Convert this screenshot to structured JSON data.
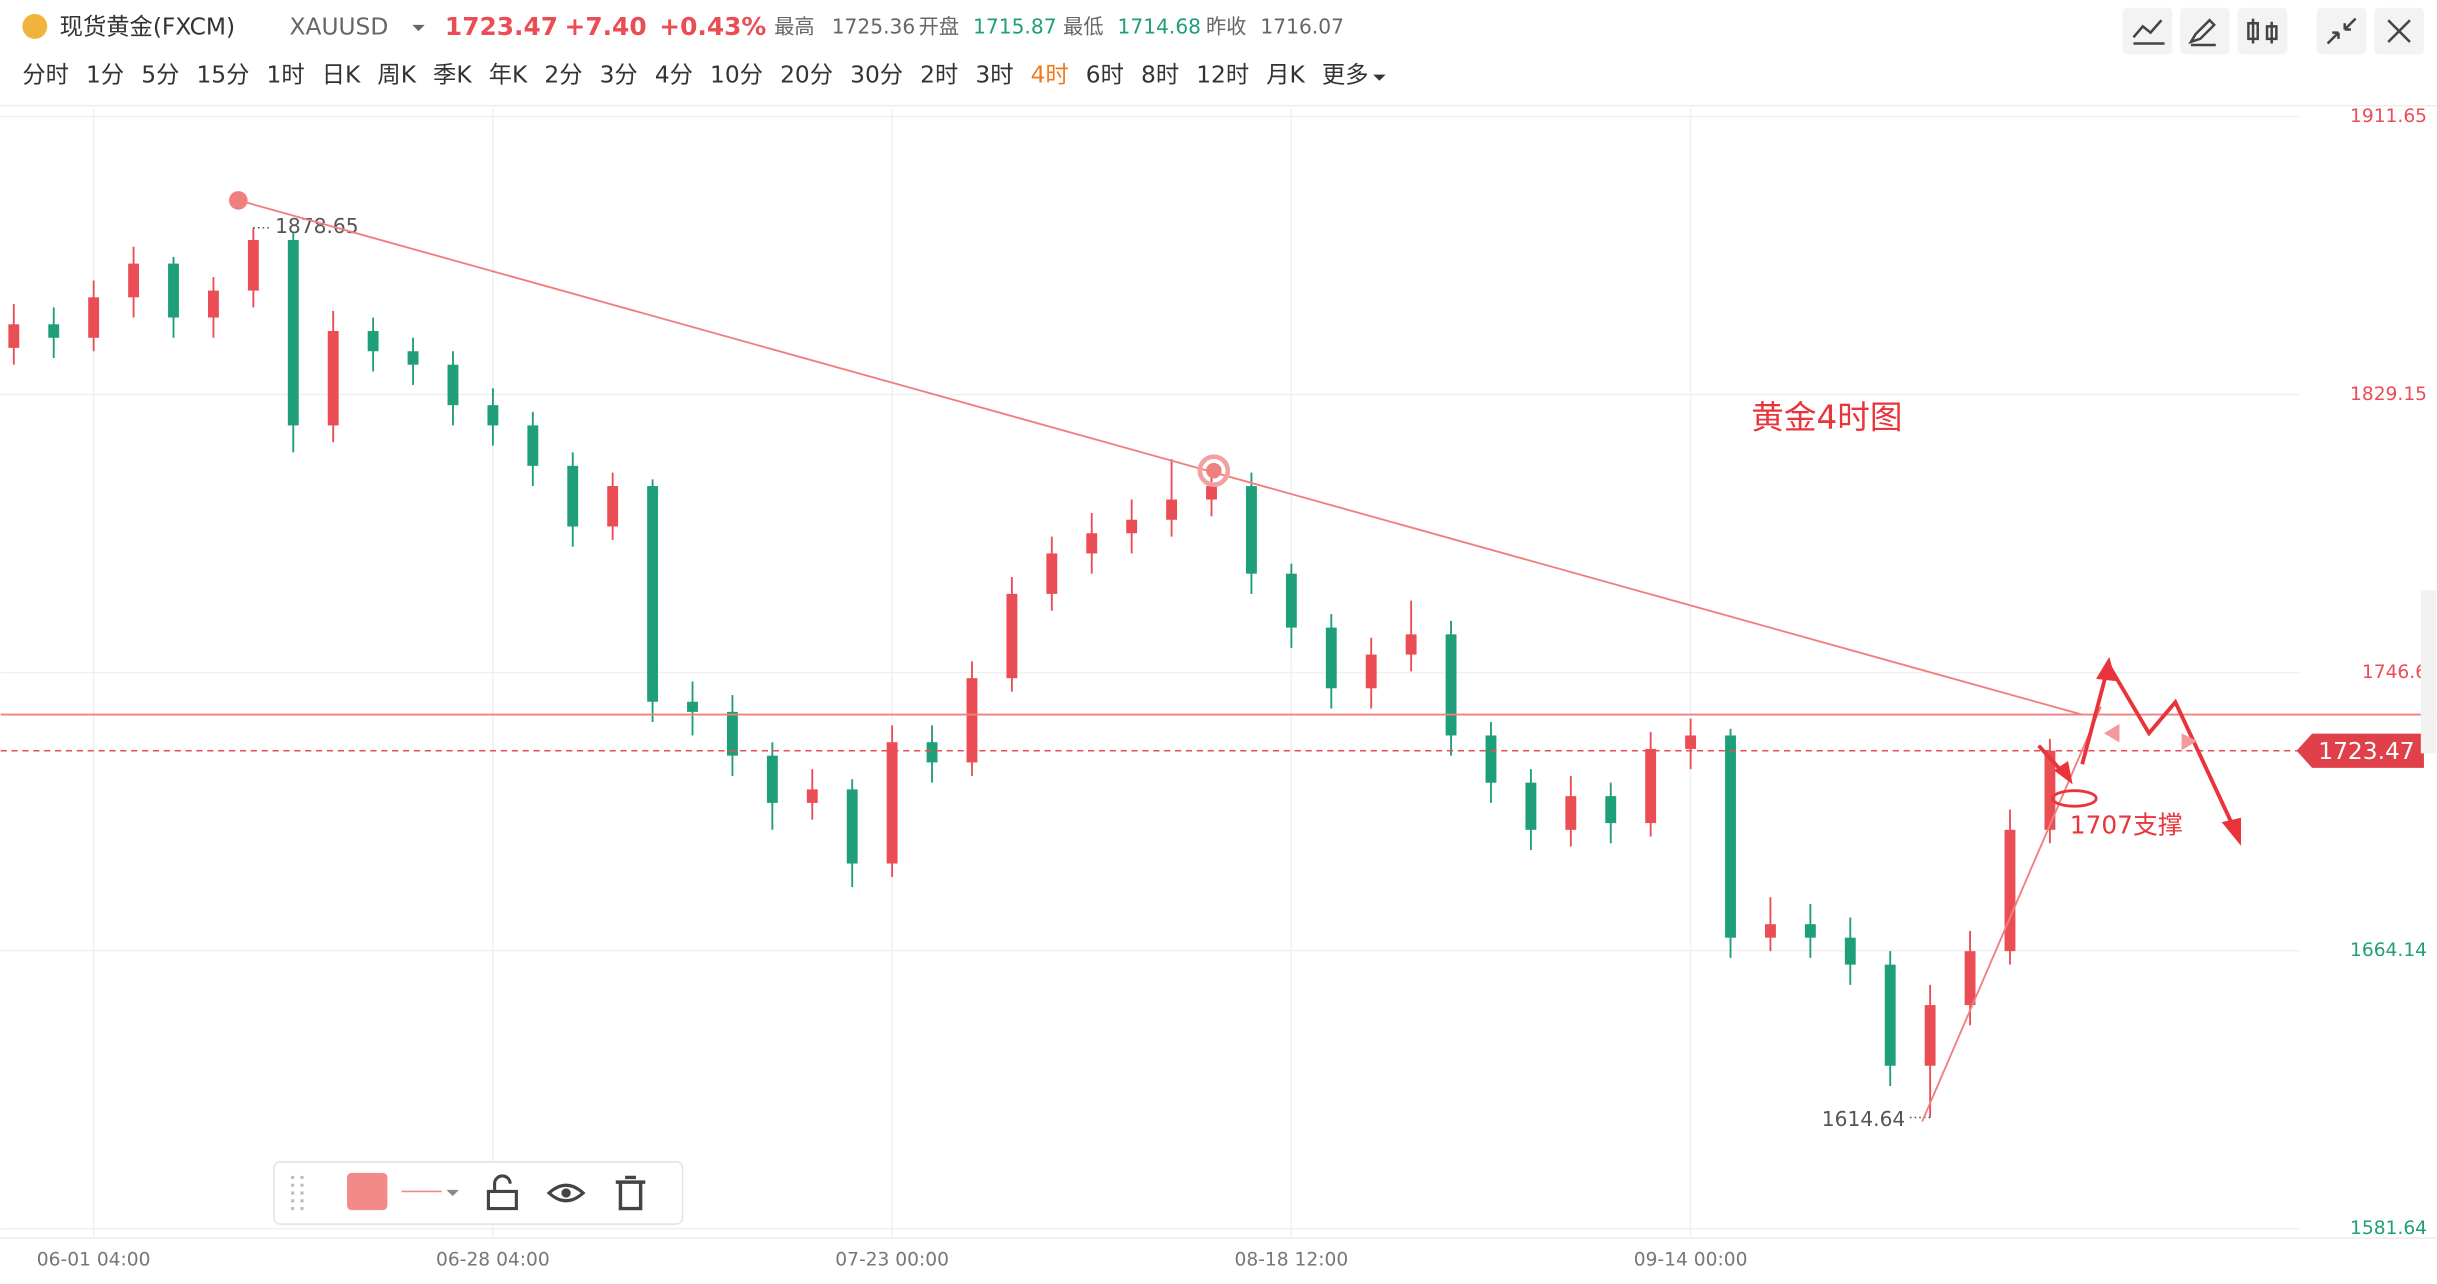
{
  "header": {
    "name": "现货黄金(FXCM)",
    "symbol": "XAUUSD",
    "price": "1723.47",
    "change": "+7.40",
    "change_pct": "+0.43%",
    "high_label": "最高",
    "high": "1725.36",
    "open_label": "开盘",
    "open": "1715.87",
    "low_label": "最低",
    "low": "1714.68",
    "prev_label": "昨收",
    "prev": "1716.07"
  },
  "periods": [
    "分时",
    "1分",
    "5分",
    "15分",
    "1时",
    "日K",
    "周K",
    "季K",
    "年K",
    "2分",
    "3分",
    "4分",
    "10分",
    "20分",
    "30分",
    "2时",
    "3时",
    "4时",
    "6时",
    "8时",
    "12时",
    "月K",
    "更多"
  ],
  "active_period": "4时",
  "chart_data": {
    "type": "candlestick",
    "up_color": "#eb4d55",
    "down_color": "#1f9e7a",
    "open": [
      1843,
      1850,
      1846,
      1858,
      1868,
      1852,
      1860,
      1875,
      1820,
      1848,
      1842,
      1838,
      1826,
      1820,
      1808,
      1790,
      1802,
      1738,
      1735,
      1722,
      1708,
      1712,
      1690,
      1726,
      1720,
      1745,
      1770,
      1782,
      1788,
      1792,
      1798,
      1802,
      1776,
      1760,
      1742,
      1752,
      1758,
      1728,
      1714,
      1700,
      1710,
      1702,
      1724,
      1728,
      1668,
      1672,
      1668,
      1660,
      1630,
      1648,
      1664,
      1700
    ],
    "high": [
      1856,
      1855,
      1863,
      1873,
      1870,
      1864,
      1878.65,
      1877,
      1854,
      1852,
      1846,
      1842,
      1831,
      1824,
      1812,
      1806,
      1804,
      1744,
      1740,
      1726,
      1718,
      1715,
      1731,
      1731,
      1750,
      1775,
      1787,
      1794,
      1798,
      1810,
      1808,
      1806,
      1779,
      1764,
      1757,
      1768,
      1762,
      1732,
      1718,
      1716,
      1714,
      1729,
      1733,
      1730,
      1680,
      1678,
      1674,
      1664,
      1654,
      1670,
      1706,
      1727
    ],
    "low": [
      1838,
      1840,
      1842,
      1852,
      1846,
      1846,
      1855,
      1812,
      1815,
      1836,
      1832,
      1820,
      1814,
      1802,
      1784,
      1786,
      1732,
      1728,
      1716,
      1700,
      1703,
      1683,
      1686,
      1714,
      1716,
      1741,
      1765,
      1776,
      1782,
      1787,
      1793,
      1770,
      1754,
      1736,
      1736,
      1747,
      1722,
      1708,
      1694,
      1695,
      1696,
      1698,
      1718,
      1662,
      1664,
      1662,
      1654,
      1624,
      1614.64,
      1642,
      1660,
      1696
    ],
    "close": [
      1850,
      1846,
      1858,
      1868,
      1852,
      1860,
      1875,
      1820,
      1848,
      1842,
      1838,
      1826,
      1820,
      1808,
      1790,
      1802,
      1738,
      1735,
      1722,
      1708,
      1712,
      1690,
      1726,
      1720,
      1745,
      1770,
      1782,
      1788,
      1792,
      1798,
      1802,
      1776,
      1760,
      1742,
      1752,
      1758,
      1728,
      1714,
      1700,
      1710,
      1702,
      1724,
      1728,
      1668,
      1672,
      1668,
      1660,
      1630,
      1648,
      1664,
      1700,
      1723.47
    ],
    "xlim": [
      0.67,
      61.68
    ],
    "xticks": [
      {
        "value": 3,
        "label": "06-01 04:00"
      },
      {
        "value": 13,
        "label": "06-28 04:00"
      },
      {
        "value": 23,
        "label": "07-23 00:00"
      },
      {
        "value": 33,
        "label": "08-18 12:00"
      },
      {
        "value": 43,
        "label": "09-14 00:00"
      }
    ],
    "ylim": [
      1581.64,
      1911.65
    ],
    "yticks": [
      1581.64,
      1664.14,
      {
        "value": 1746.65,
        "label": "1746.6"
      },
      1829.15,
      1911.65
    ],
    "grid": true,
    "last_price": 1723.47,
    "prev_close": 1716.07,
    "hline": 1734.2,
    "trendline": {
      "x": [
        6.62,
        52.8
      ],
      "y": [
        1886.8,
        1734.2
      ]
    },
    "annotations": [
      "黄金4时图",
      "1707支撑"
    ]
  }
}
